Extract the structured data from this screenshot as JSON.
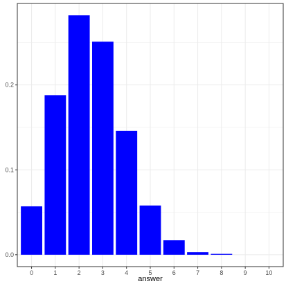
{
  "chart_data": {
    "type": "bar",
    "title": "",
    "xlabel": "answer",
    "ylabel": "",
    "categories": [
      "0",
      "1",
      "2",
      "3",
      "4",
      "5",
      "6",
      "7",
      "8",
      "9",
      "10"
    ],
    "values": [
      0.057,
      0.188,
      0.282,
      0.251,
      0.146,
      0.058,
      0.017,
      0.003,
      0.001,
      0.0,
      0.0
    ],
    "yticks": [
      0.0,
      0.1,
      0.2
    ],
    "ytick_labels": [
      "0.0",
      "0.1",
      "0.2"
    ],
    "ylim": [
      -0.014,
      0.296
    ],
    "xlim": [
      -0.6,
      10.6
    ],
    "grid": true,
    "bar_color": "#0000FF",
    "grid_color": "#EBEBEB",
    "border_color": "#333333"
  }
}
